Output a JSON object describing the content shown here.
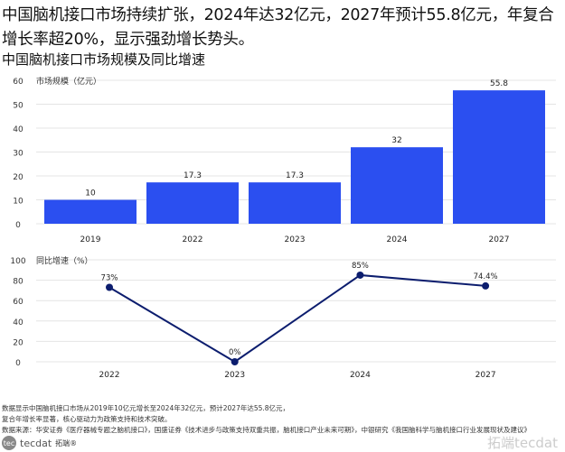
{
  "headline": "中国脑机接口市场持续扩张，2024年达32亿元，2027年预计55.8亿元，年复合增长率超20%，显示强劲增长势头。",
  "chart_title": "中国脑机接口市场规模及同比增速",
  "chart_data": [
    {
      "type": "bar",
      "ylabel": "市场规模（亿元）",
      "categories": [
        "2019",
        "2022",
        "2023",
        "2024",
        "2027"
      ],
      "values": [
        10,
        17.3,
        17.3,
        32,
        55.8
      ],
      "labels": [
        "10",
        "17.3",
        "17.3",
        "32",
        "55.8"
      ],
      "ylim": [
        0,
        60
      ],
      "yticks": [
        0,
        10,
        20,
        30,
        40,
        50,
        60
      ],
      "grid": true,
      "color": "#2b4ff0"
    },
    {
      "type": "line",
      "ylabel": "同比增速（%）",
      "categories": [
        "2022",
        "2023",
        "2024",
        "2027"
      ],
      "values": [
        73,
        0,
        85,
        74.4
      ],
      "labels": [
        "73%",
        "0%",
        "85%",
        "74.4%"
      ],
      "ylim": [
        0,
        100
      ],
      "yticks": [
        0,
        20,
        40,
        60,
        80,
        100
      ],
      "grid": true,
      "color": "#0c1d6e"
    }
  ],
  "footer": {
    "line1": "数据显示中国脑机接口市场从2019年10亿元增长至2024年32亿元，预计2027年达55.8亿元，",
    "line2": "复合年增长率显著，核心驱动力为政策支持和技术突破。",
    "source": "数据来源：华安证券《医疗器械专题之脑机接口》，国盛证券《技术进步与政策支持双重共振，脑机接口产业未来可期》，中银研究《我国脑科学与脑机接口行业发展现状及建议》"
  },
  "logo": {
    "brand": "tecdat",
    "cn": "拓端®"
  },
  "watermark": "拓端tecdat"
}
